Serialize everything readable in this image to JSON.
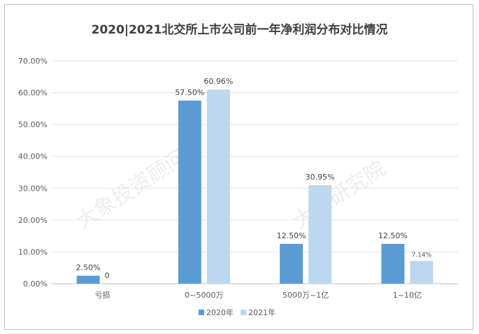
{
  "chart_data": {
    "type": "bar",
    "title": "2020|2021北交所上市公司前一年净利润分布对比情况",
    "categories": [
      "亏损",
      "0~5000万",
      "5000万~1亿",
      "1~10亿"
    ],
    "series": [
      {
        "name": "2020年",
        "values": [
          2.5,
          57.5,
          12.5,
          12.5
        ],
        "labels": [
          "2.50%",
          "57.50%",
          "12.50%",
          "12.50%"
        ],
        "color": "#5b9bd5"
      },
      {
        "name": "2021年",
        "values": [
          0,
          60.96,
          30.95,
          7.14
        ],
        "labels": [
          "0",
          "60.96%",
          "30.95%",
          "7.14%"
        ],
        "color": "#bdd7ee"
      }
    ],
    "yticks": [
      "0.00%",
      "10.00%",
      "20.00%",
      "30.00%",
      "40.00%",
      "50.00%",
      "60.00%",
      "70.00%"
    ],
    "ylim": [
      0,
      70
    ],
    "grid": true,
    "legend_position": "bottom"
  },
  "watermarks": [
    "大象投资顾问",
    "大象研究院"
  ]
}
